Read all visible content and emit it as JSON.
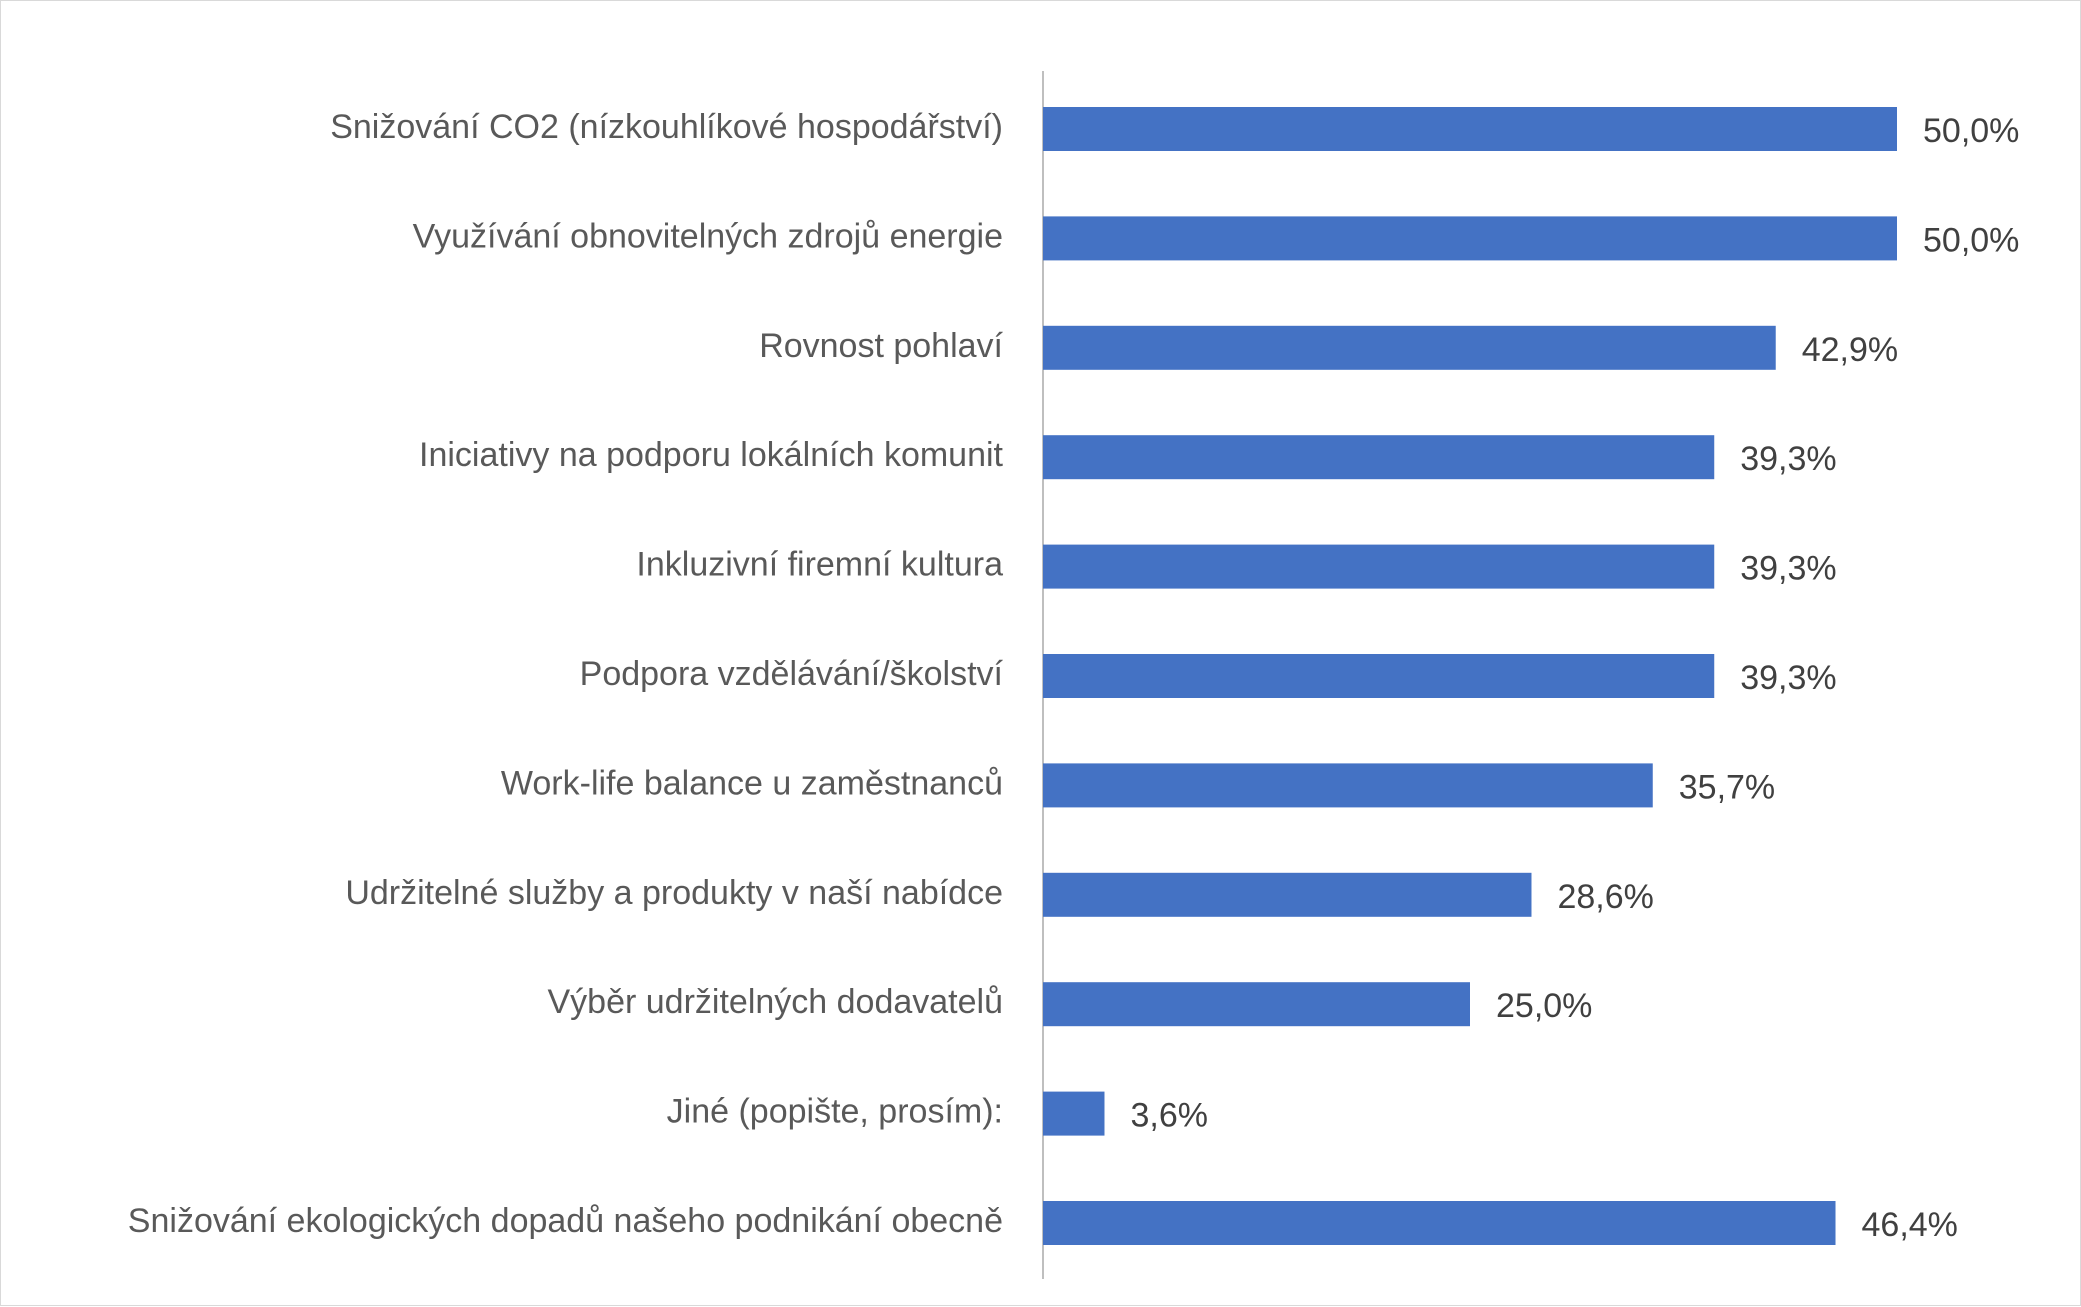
{
  "chart_data": {
    "type": "bar",
    "orientation": "horizontal",
    "categories": [
      "Snižování CO2 (nízkouhlíkové hospodářství)",
      "Využívání obnovitelných zdrojů energie",
      "Rovnost pohlaví",
      "Iniciativy na podporu lokálních komunit",
      "Inkluzivní firemní kultura",
      "Podpora vzdělávání/školství",
      "Work-life balance u zaměstnanců",
      "Udržitelné služby a produkty v naší nabídce",
      "Výběr udržitelných dodavatelů",
      "Jiné (popište, prosím):",
      "Snižování ekologických dopadů našeho podnikání obecně"
    ],
    "values": [
      50.0,
      50.0,
      42.9,
      39.3,
      39.3,
      39.3,
      35.7,
      28.6,
      25.0,
      3.6,
      46.4
    ],
    "value_labels": [
      "50,0%",
      "50,0%",
      "42,9%",
      "39,3%",
      "39,3%",
      "39,3%",
      "35,7%",
      "28,6%",
      "25,0%",
      "3,6%",
      "46,4%"
    ],
    "unit": "%",
    "xlim": [
      0,
      50
    ],
    "title": "",
    "xlabel": "",
    "ylabel": "",
    "grid": false,
    "legend": "none",
    "colors": {
      "bar": "#4472c4",
      "axis": "#bfbfbf",
      "category_text": "#595959",
      "value_text": "#404040"
    }
  }
}
